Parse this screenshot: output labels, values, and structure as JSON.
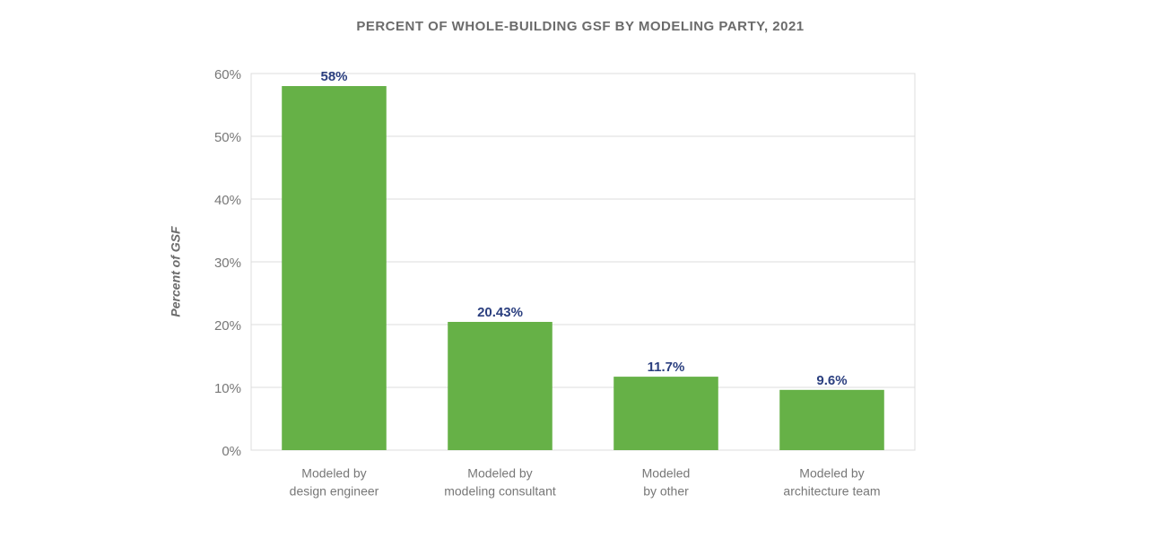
{
  "chart_data": {
    "type": "bar",
    "title": "PERCENT OF WHOLE-BUILDING GSF BY MODELING PARTY, 2021",
    "y_label": "Percent of GSF",
    "categories": [
      [
        "Modeled by",
        "design engineer"
      ],
      [
        "Modeled by",
        "modeling consultant"
      ],
      [
        "Modeled",
        "by other"
      ],
      [
        "Modeled by",
        "architecture team"
      ]
    ],
    "values": [
      58,
      20.43,
      11.7,
      9.6
    ],
    "value_labels": [
      "58%",
      "20.43%",
      "11.7%",
      "9.6%"
    ],
    "color": "#66b147",
    "ylim": [
      0,
      60
    ],
    "yticks": [
      {
        "value": 0,
        "label": "0%"
      },
      {
        "value": 10,
        "label": "10%"
      },
      {
        "value": 20,
        "label": "20%"
      },
      {
        "value": 30,
        "label": "30%"
      },
      {
        "value": 40,
        "label": "40%"
      },
      {
        "value": 50,
        "label": "50%"
      },
      {
        "value": 60,
        "label": "60%"
      }
    ],
    "grid": true
  }
}
